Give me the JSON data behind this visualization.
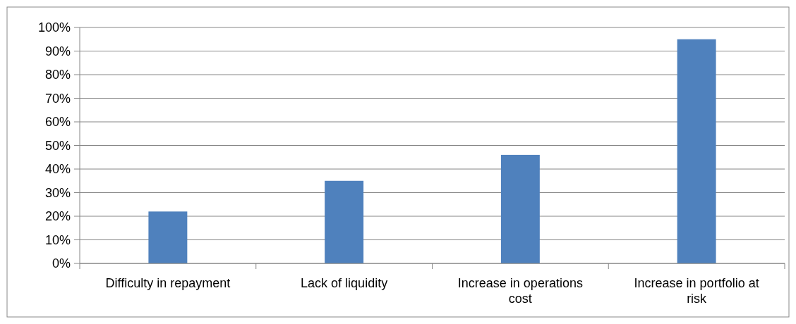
{
  "chart_data": {
    "type": "bar",
    "categories": [
      "Difficulty in repayment",
      "Lack of liquidity",
      "Increase in operations cost",
      "Increase in portfolio at risk"
    ],
    "values": [
      22,
      35,
      46,
      95
    ],
    "color": "#4f81bd",
    "ylim": [
      0,
      100
    ],
    "yticks": [
      {
        "value": 0,
        "label": "0%"
      },
      {
        "value": 10,
        "label": "10%"
      },
      {
        "value": 20,
        "label": "20%"
      },
      {
        "value": 30,
        "label": "30%"
      },
      {
        "value": 40,
        "label": "40%"
      },
      {
        "value": 50,
        "label": "50%"
      },
      {
        "value": 60,
        "label": "60%"
      },
      {
        "value": 70,
        "label": "70%"
      },
      {
        "value": 80,
        "label": "80%"
      },
      {
        "value": 90,
        "label": "90%"
      },
      {
        "value": 100,
        "label": "100%"
      }
    ],
    "grid": "y"
  }
}
